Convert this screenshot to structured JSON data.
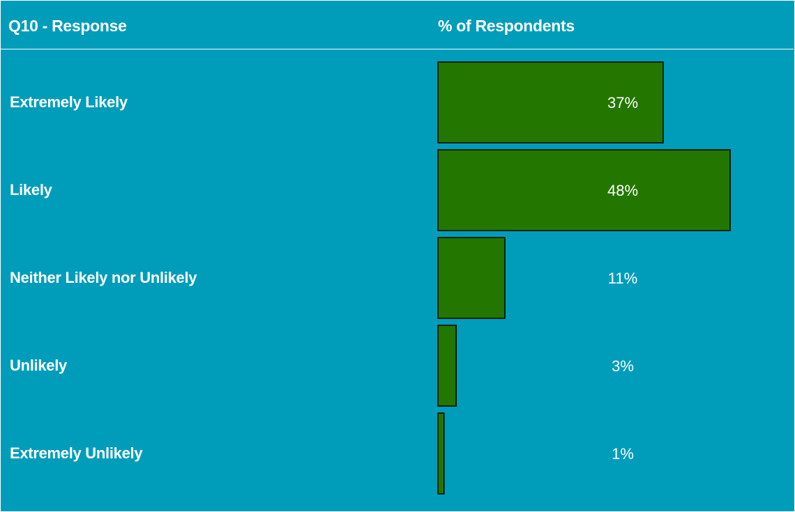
{
  "header": {
    "left_title": "Q10 - Response",
    "right_title": "% of Respondents"
  },
  "colors": {
    "background": "#009dbb",
    "bar_fill": "#237700",
    "bar_stroke": "#000000",
    "text": "#ffffff"
  },
  "chart_data": {
    "type": "bar",
    "orientation": "horizontal",
    "xlabel": "% of Respondents",
    "ylabel": "Q10 - Response",
    "xlim": [
      0,
      48
    ],
    "categories": [
      "Extremely Likely",
      "Likely",
      "Neither Likely nor Unlikely",
      "Unlikely",
      "Extremely Unlikely"
    ],
    "values": [
      37,
      48,
      11,
      3,
      1
    ],
    "data_labels": [
      "37%",
      "48%",
      "11%",
      "3%",
      "1%"
    ],
    "legend": "none",
    "grid": false
  }
}
